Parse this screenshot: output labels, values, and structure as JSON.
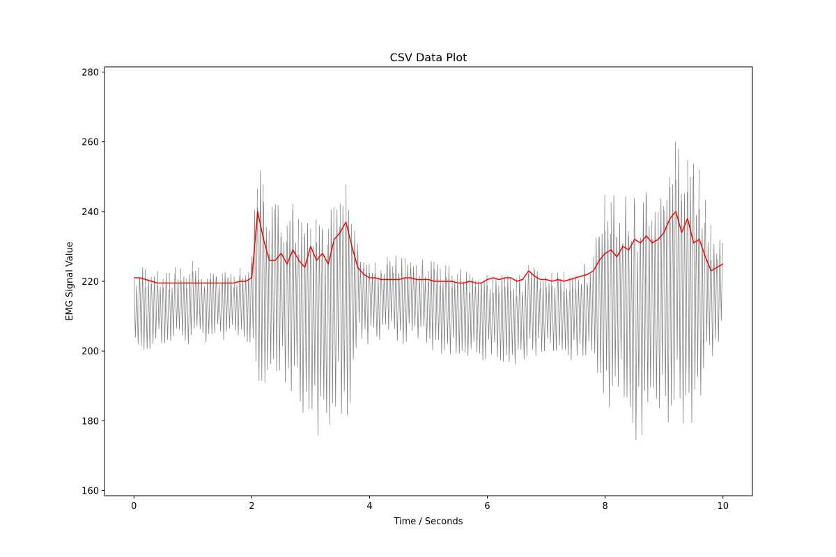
{
  "chart_data": {
    "type": "line",
    "title": "CSV Data Plot",
    "xlabel": "Time / Seconds",
    "ylabel": "EMG Signal Value",
    "xlim": [
      -0.5,
      10.5
    ],
    "ylim": [
      158.5,
      281.5
    ],
    "x_ticks": [
      0,
      2,
      4,
      6,
      8,
      10
    ],
    "x_tick_labels": [
      "0",
      "2",
      "4",
      "6",
      "8",
      "10"
    ],
    "y_ticks": [
      160,
      180,
      200,
      220,
      240,
      260,
      280
    ],
    "y_tick_labels": [
      "160",
      "180",
      "200",
      "220",
      "240",
      "260",
      "280"
    ],
    "grid": false,
    "legend": "none",
    "colors": {
      "raw": "#808080",
      "smoothed": "#ff0000"
    },
    "series": [
      {
        "id": "raw",
        "x": [
          0.0,
          0.1,
          0.2,
          0.3,
          0.4,
          0.5,
          0.6,
          0.7,
          0.8,
          0.9,
          1.0,
          1.1,
          1.2,
          1.3,
          1.4,
          1.5,
          1.6,
          1.7,
          1.8,
          1.9,
          2.0,
          2.1,
          2.2,
          2.3,
          2.4,
          2.5,
          2.6,
          2.7,
          2.8,
          2.9,
          3.0,
          3.1,
          3.2,
          3.3,
          3.4,
          3.5,
          3.6,
          3.7,
          3.8,
          3.9,
          4.0,
          4.1,
          4.2,
          4.3,
          4.4,
          4.5,
          4.6,
          4.7,
          4.8,
          4.9,
          5.0,
          5.1,
          5.2,
          5.3,
          5.4,
          5.5,
          5.6,
          5.7,
          5.8,
          5.9,
          6.0,
          6.1,
          6.2,
          6.3,
          6.4,
          6.5,
          6.6,
          6.7,
          6.8,
          6.9,
          7.0,
          7.1,
          7.2,
          7.3,
          7.4,
          7.5,
          7.6,
          7.7,
          7.8,
          7.9,
          8.0,
          8.1,
          8.2,
          8.3,
          8.4,
          8.5,
          8.6,
          8.7,
          8.8,
          8.9,
          9.0,
          9.1,
          9.2,
          9.3,
          9.4,
          9.5,
          9.6,
          9.7,
          9.8,
          9.9,
          10.0
        ],
        "upper": [
          223,
          225,
          224,
          223,
          224,
          224,
          223,
          224,
          224,
          223,
          226,
          224,
          223,
          224,
          223,
          224,
          224,
          223,
          224,
          223,
          228,
          258,
          248,
          240,
          247,
          242,
          240,
          245,
          238,
          243,
          245,
          238,
          244,
          240,
          248,
          254,
          248,
          242,
          236,
          228,
          227,
          228,
          226,
          227,
          227,
          228,
          227,
          228,
          227,
          228,
          226,
          226,
          225,
          225,
          224,
          224,
          224,
          223,
          222,
          222,
          223,
          223,
          222,
          222,
          223,
          222,
          222,
          230,
          226,
          224,
          224,
          224,
          224,
          223,
          223,
          224,
          225,
          226,
          228,
          244,
          245,
          244,
          246,
          245,
          247,
          248,
          246,
          247,
          249,
          245,
          250,
          258,
          270,
          262,
          258,
          257,
          255,
          244,
          236,
          232,
          232
        ],
        "lower": [
          202,
          201,
          200,
          199,
          201,
          201,
          201,
          201,
          202,
          202,
          202,
          202,
          202,
          202,
          203,
          203,
          203,
          203,
          203,
          203,
          200,
          188,
          186,
          186,
          186,
          190,
          184,
          184,
          186,
          180,
          178,
          174,
          178,
          178,
          172,
          182,
          180,
          185,
          200,
          201,
          202,
          202,
          203,
          203,
          203,
          202,
          202,
          202,
          202,
          201,
          200,
          200,
          199,
          199,
          198,
          198,
          198,
          197,
          197,
          197,
          197,
          197,
          197,
          196,
          196,
          196,
          196,
          199,
          198,
          198,
          199,
          198,
          198,
          198,
          197,
          197,
          196,
          196,
          196,
          185,
          182,
          182,
          181,
          183,
          182,
          174,
          170,
          172,
          175,
          185,
          178,
          180,
          177,
          175,
          176,
          177,
          176,
          190,
          195,
          200,
          203
        ]
      },
      {
        "id": "smoothed",
        "x": [
          0.0,
          0.1,
          0.2,
          0.3,
          0.4,
          0.5,
          0.6,
          0.7,
          0.8,
          0.9,
          1.0,
          1.1,
          1.2,
          1.3,
          1.4,
          1.5,
          1.6,
          1.7,
          1.8,
          1.9,
          2.0,
          2.1,
          2.2,
          2.3,
          2.4,
          2.5,
          2.6,
          2.7,
          2.8,
          2.9,
          3.0,
          3.1,
          3.2,
          3.3,
          3.4,
          3.5,
          3.6,
          3.7,
          3.8,
          3.9,
          4.0,
          4.1,
          4.2,
          4.3,
          4.4,
          4.5,
          4.6,
          4.7,
          4.8,
          4.9,
          5.0,
          5.1,
          5.2,
          5.3,
          5.4,
          5.5,
          5.6,
          5.7,
          5.8,
          5.9,
          6.0,
          6.1,
          6.2,
          6.3,
          6.4,
          6.5,
          6.6,
          6.7,
          6.8,
          6.9,
          7.0,
          7.1,
          7.2,
          7.3,
          7.4,
          7.5,
          7.6,
          7.7,
          7.8,
          7.9,
          8.0,
          8.1,
          8.2,
          8.3,
          8.4,
          8.5,
          8.6,
          8.7,
          8.8,
          8.9,
          9.0,
          9.1,
          9.2,
          9.3,
          9.4,
          9.5,
          9.6,
          9.7,
          9.8,
          9.9,
          10.0
        ],
        "y": [
          221,
          221,
          220.5,
          220,
          219.5,
          219.5,
          219.5,
          219.5,
          219.5,
          219.5,
          219.5,
          219.5,
          219.5,
          219.5,
          219.5,
          219.5,
          219.5,
          219.5,
          220,
          220,
          221,
          240,
          232,
          226,
          226,
          228,
          225,
          229,
          226,
          224,
          230,
          226,
          228,
          225,
          232,
          234,
          237,
          230,
          224,
          222,
          221,
          221,
          220.5,
          220.5,
          220.5,
          220.5,
          221,
          221,
          220.5,
          220.5,
          220.5,
          220,
          220,
          220,
          220,
          219.5,
          219.5,
          220,
          219.5,
          219.5,
          220.5,
          221,
          220.5,
          221,
          221,
          220,
          220.5,
          223,
          221.5,
          220.5,
          220.5,
          220,
          220.5,
          220,
          220.5,
          221,
          221.5,
          222,
          223,
          226,
          228,
          229,
          227,
          230,
          229,
          232,
          231,
          233,
          231,
          232,
          234,
          238,
          240,
          234,
          238,
          231,
          232,
          227,
          223,
          224,
          225
        ]
      }
    ]
  }
}
